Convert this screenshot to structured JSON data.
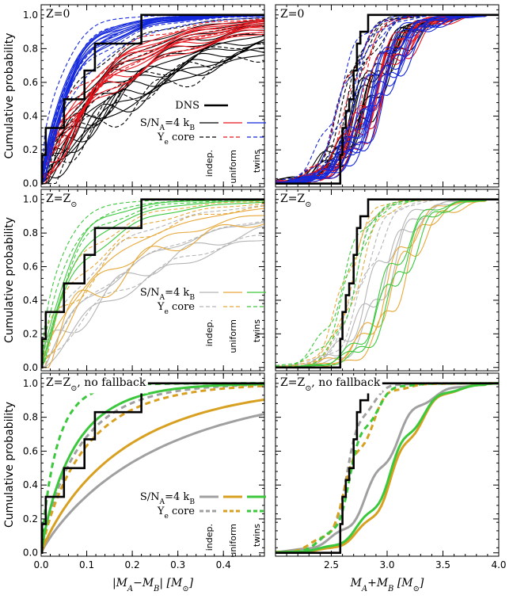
{
  "figure": {
    "ylabel": "Cumulative probability",
    "xlabel_left": "|M_A−M_B| [M_⊙]",
    "xlabel_right": "M_A+M_B [M_⊙]"
  },
  "rows": [
    {
      "title": "Z=0",
      "legend_dns": "DNS",
      "legend_sn": "S/N_A=4 k_B",
      "legend_ye": "Y_e core",
      "legend_cols": [
        "indep.",
        "uniform",
        "twins"
      ]
    },
    {
      "title": "Z=Z_⊙",
      "legend_sn": "S/N_A=4 k_B",
      "legend_ye": "Y_e core",
      "legend_cols": [
        "indep.",
        "uniform",
        "twins"
      ]
    },
    {
      "title": "Z=Z_⊙, no fallback",
      "legend_sn": "S/N_A=4 k_B",
      "legend_ye": "Y_e core",
      "legend_cols": [
        "indep.",
        "uniform",
        "twins"
      ]
    }
  ],
  "colors": {
    "row0": {
      "indep": "#000000",
      "uniform": "#e8141c",
      "twins": "#1428dc"
    },
    "row1": {
      "indep": "#b4b4b4",
      "uniform": "#e6a83a",
      "twins": "#3cc83c"
    },
    "row2": {
      "indep": "#a0a0a0",
      "uniform": "#d8a020",
      "twins": "#3cc83c"
    },
    "dns": "#000000"
  },
  "chart_data": [
    {
      "type": "line",
      "panel": "left",
      "row": 0,
      "xlim": [
        0.0,
        0.49
      ],
      "ylim": [
        -0.02,
        1.06
      ],
      "xticks": [
        0.0,
        0.1,
        0.2,
        0.3,
        0.4
      ],
      "yticks": [
        0.0,
        0.2,
        0.4,
        0.6,
        0.8,
        1.0
      ],
      "dns_step": {
        "x": [
          0.0,
          0.002,
          0.01,
          0.035,
          0.05,
          0.085,
          0.095,
          0.118,
          0.22,
          0.49
        ],
        "y": [
          0.0,
          0.17,
          0.33,
          0.33,
          0.5,
          0.5,
          0.67,
          0.83,
          1.0,
          1.0
        ]
      },
      "groups": {
        "twins": {
          "n_solid": 12,
          "n_dashed": 5,
          "solid_range": [
            0.055,
            0.08
          ],
          "dashed_range": [
            0.04,
            0.1
          ]
        },
        "uniform": {
          "n_solid": 10,
          "n_dashed": 3,
          "solid_range": [
            0.12,
            0.2
          ],
          "dashed_range": [
            0.11,
            0.16
          ]
        },
        "indep": {
          "n_solid": 14,
          "n_dashed": 6,
          "solid_range": [
            0.12,
            0.32
          ],
          "dashed_range": [
            0.1,
            0.33
          ]
        }
      }
    },
    {
      "type": "line",
      "panel": "right",
      "row": 0,
      "xlim": [
        2.0,
        4.0
      ],
      "ylim": [
        -0.02,
        1.06
      ],
      "xticks": [
        2.5,
        3.0,
        3.5,
        4.0
      ],
      "yticks": [
        0.0,
        0.2,
        0.4,
        0.6,
        0.8,
        1.0
      ],
      "dns_step": {
        "x": [
          2.0,
          2.55,
          2.58,
          2.6,
          2.63,
          2.66,
          2.7,
          2.73,
          2.76,
          2.83,
          4.0
        ],
        "y": [
          0.0,
          0.0,
          0.17,
          0.33,
          0.43,
          0.5,
          0.67,
          0.83,
          0.9,
          1.0,
          1.0
        ]
      },
      "groups": {
        "twins": {
          "n_solid": 12,
          "n_dashed": 5,
          "solid_median": [
            2.8,
            2.98
          ],
          "dashed_median": [
            2.55,
            2.75
          ]
        },
        "uniform": {
          "n_solid": 9,
          "n_dashed": 3,
          "solid_median": [
            2.8,
            2.95
          ],
          "dashed_median": [
            2.6,
            2.75
          ]
        },
        "indep": {
          "n_solid": 10,
          "n_dashed": 5,
          "solid_median": [
            2.75,
            2.9
          ],
          "dashed_median": [
            2.6,
            2.72
          ]
        }
      }
    },
    {
      "type": "line",
      "panel": "left",
      "row": 1,
      "xlim": [
        0.0,
        0.49
      ],
      "ylim": [
        -0.02,
        1.06
      ],
      "xticks": [
        0.0,
        0.1,
        0.2,
        0.3,
        0.4
      ],
      "yticks": [
        0.0,
        0.2,
        0.4,
        0.6,
        0.8,
        1.0
      ],
      "dns_step": {
        "x": [
          0.0,
          0.002,
          0.01,
          0.035,
          0.05,
          0.085,
          0.095,
          0.118,
          0.22,
          0.49
        ],
        "y": [
          0.0,
          0.17,
          0.33,
          0.33,
          0.5,
          0.5,
          0.67,
          0.83,
          1.0,
          1.0
        ]
      },
      "groups": {
        "twins": {
          "n_solid": 3,
          "n_dashed": 3,
          "solid_range": [
            0.06,
            0.1
          ],
          "dashed_range": [
            0.04,
            0.07
          ]
        },
        "uniform": {
          "n_solid": 3,
          "n_dashed": 3,
          "solid_range": [
            0.15,
            0.22
          ],
          "dashed_range": [
            0.09,
            0.14
          ]
        },
        "indep": {
          "n_solid": 3,
          "n_dashed": 3,
          "solid_range": [
            0.22,
            0.32
          ],
          "dashed_range": [
            0.13,
            0.3
          ]
        }
      }
    },
    {
      "type": "line",
      "panel": "right",
      "row": 1,
      "xlim": [
        2.0,
        4.0
      ],
      "ylim": [
        -0.02,
        1.06
      ],
      "xticks": [
        2.5,
        3.0,
        3.5,
        4.0
      ],
      "yticks": [
        0.0,
        0.2,
        0.4,
        0.6,
        0.8,
        1.0
      ],
      "dns_step": {
        "x": [
          2.0,
          2.55,
          2.58,
          2.6,
          2.63,
          2.66,
          2.7,
          2.73,
          2.76,
          2.83,
          4.0
        ],
        "y": [
          0.0,
          0.0,
          0.17,
          0.33,
          0.43,
          0.5,
          0.67,
          0.83,
          0.9,
          1.0,
          1.0
        ]
      },
      "groups": {
        "twins": {
          "n_solid": 3,
          "n_dashed": 3,
          "solid_median": [
            3.0,
            3.1
          ],
          "dashed_median": [
            2.6,
            2.7
          ]
        },
        "uniform": {
          "n_solid": 3,
          "n_dashed": 3,
          "solid_median": [
            3.02,
            3.12
          ],
          "dashed_median": [
            2.62,
            2.72
          ]
        },
        "indep": {
          "n_solid": 3,
          "n_dashed": 3,
          "solid_median": [
            2.88,
            2.98
          ],
          "dashed_median": [
            2.7,
            2.8
          ]
        }
      }
    },
    {
      "type": "line",
      "panel": "left",
      "row": 2,
      "xlim": [
        0.0,
        0.49
      ],
      "ylim": [
        -0.02,
        1.06
      ],
      "xticks": [
        0.0,
        0.1,
        0.2,
        0.3,
        0.4
      ],
      "yticks": [
        0.0,
        0.2,
        0.4,
        0.6,
        0.8,
        1.0
      ],
      "dns_step": {
        "x": [
          0.0,
          0.002,
          0.01,
          0.035,
          0.05,
          0.085,
          0.095,
          0.118,
          0.22,
          0.49
        ],
        "y": [
          0.0,
          0.17,
          0.33,
          0.33,
          0.5,
          0.5,
          0.67,
          0.83,
          1.0,
          1.0
        ]
      },
      "groups": {
        "twins": {
          "n_solid": 1,
          "n_dashed": 1,
          "solid_range": [
            0.075,
            0.075
          ],
          "dashed_range": [
            0.035,
            0.035
          ]
        },
        "uniform": {
          "n_solid": 1,
          "n_dashed": 1,
          "solid_range": [
            0.19,
            0.19
          ],
          "dashed_range": [
            0.1,
            0.1
          ]
        },
        "indep": {
          "n_solid": 1,
          "n_dashed": 1,
          "solid_range": [
            0.27,
            0.27
          ],
          "dashed_range": [
            0.085,
            0.085
          ]
        }
      }
    },
    {
      "type": "line",
      "panel": "right",
      "row": 2,
      "xlim": [
        2.0,
        4.0
      ],
      "ylim": [
        -0.02,
        1.06
      ],
      "xticks": [
        2.5,
        3.0,
        3.5,
        4.0
      ],
      "yticks": [
        0.0,
        0.2,
        0.4,
        0.6,
        0.8,
        1.0
      ],
      "dns_step": {
        "x": [
          2.0,
          2.55,
          2.58,
          2.6,
          2.63,
          2.66,
          2.7,
          2.73,
          2.76,
          2.83,
          4.0
        ],
        "y": [
          0.0,
          0.0,
          0.17,
          0.33,
          0.43,
          0.5,
          0.67,
          0.83,
          0.9,
          1.0,
          1.0
        ]
      },
      "groups": {
        "twins": {
          "n_solid": 1,
          "n_dashed": 1,
          "solid_median": [
            3.05,
            3.05
          ],
          "dashed_median": [
            2.7,
            2.7
          ]
        },
        "uniform": {
          "n_solid": 1,
          "n_dashed": 1,
          "solid_median": [
            3.08,
            3.08
          ],
          "dashed_median": [
            2.7,
            2.7
          ]
        },
        "indep": {
          "n_solid": 1,
          "n_dashed": 1,
          "solid_median": [
            2.95,
            2.95
          ],
          "dashed_median": [
            2.66,
            2.66
          ]
        }
      }
    }
  ]
}
